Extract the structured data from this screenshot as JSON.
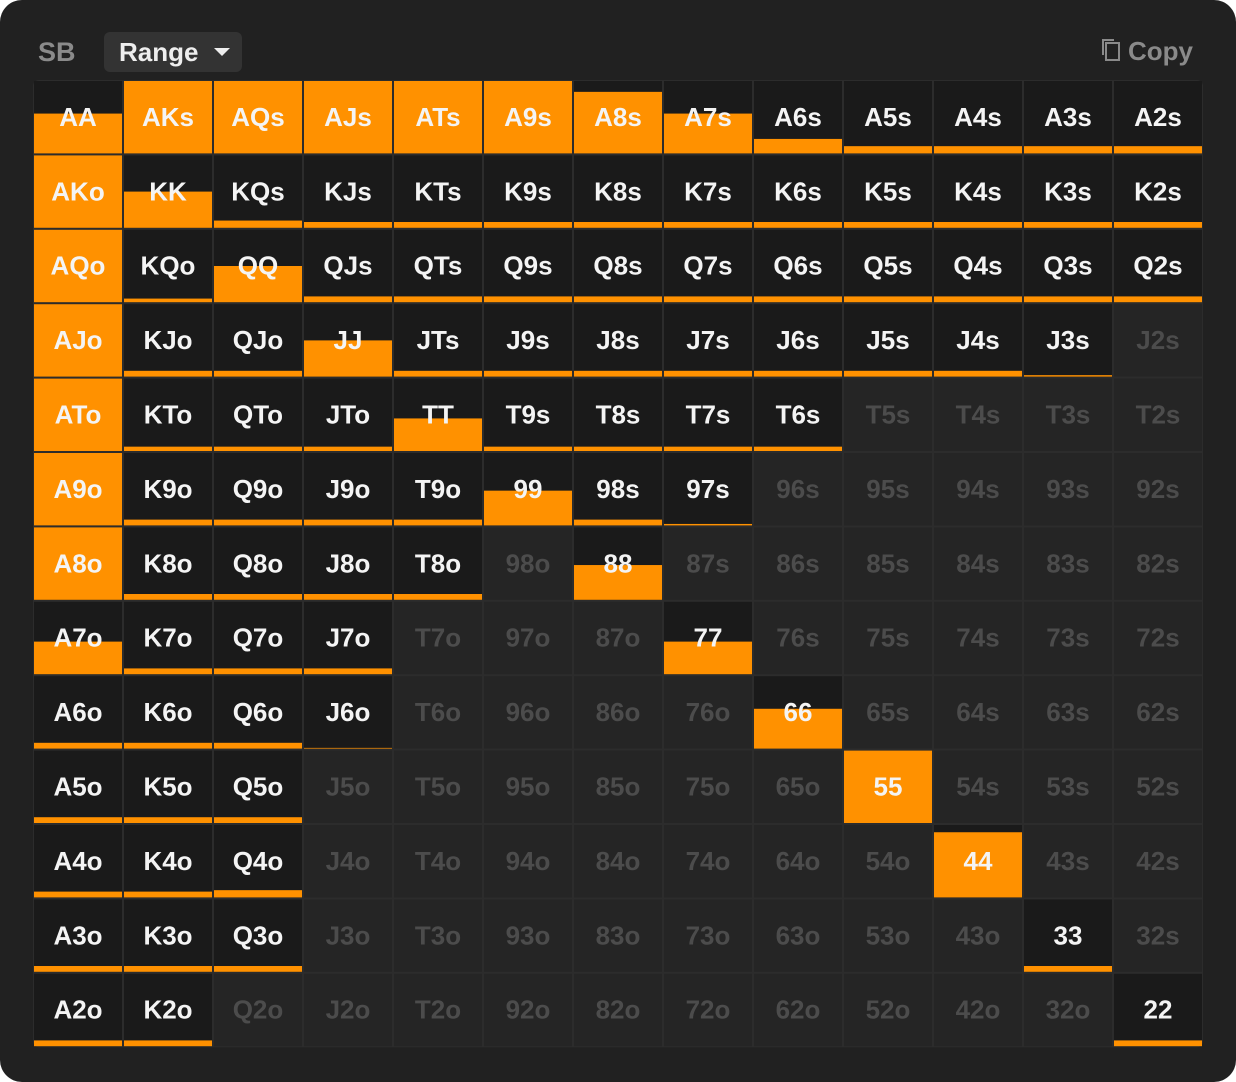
{
  "header": {
    "position": "SB",
    "view": "Range",
    "copy": "Copy"
  },
  "grid": {
    "labels": [
      [
        "AA",
        "AKs",
        "AQs",
        "AJs",
        "ATs",
        "A9s",
        "A8s",
        "A7s",
        "A6s",
        "A5s",
        "A4s",
        "A3s",
        "A2s"
      ],
      [
        "AKo",
        "KK",
        "KQs",
        "KJs",
        "KTs",
        "K9s",
        "K8s",
        "K7s",
        "K6s",
        "K5s",
        "K4s",
        "K3s",
        "K2s"
      ],
      [
        "AQo",
        "KQo",
        "QQ",
        "QJs",
        "QTs",
        "Q9s",
        "Q8s",
        "Q7s",
        "Q6s",
        "Q5s",
        "Q4s",
        "Q3s",
        "Q2s"
      ],
      [
        "AJo",
        "KJo",
        "QJo",
        "JJ",
        "JTs",
        "J9s",
        "J8s",
        "J7s",
        "J6s",
        "J5s",
        "J4s",
        "J3s",
        "J2s"
      ],
      [
        "ATo",
        "KTo",
        "QTo",
        "JTo",
        "TT",
        "T9s",
        "T8s",
        "T7s",
        "T6s",
        "T5s",
        "T4s",
        "T3s",
        "T2s"
      ],
      [
        "A9o",
        "K9o",
        "Q9o",
        "J9o",
        "T9o",
        "99",
        "98s",
        "97s",
        "96s",
        "95s",
        "94s",
        "93s",
        "92s"
      ],
      [
        "A8o",
        "K8o",
        "Q8o",
        "J8o",
        "T8o",
        "98o",
        "88",
        "87s",
        "86s",
        "85s",
        "84s",
        "83s",
        "82s"
      ],
      [
        "A7o",
        "K7o",
        "Q7o",
        "J7o",
        "T7o",
        "97o",
        "87o",
        "77",
        "76s",
        "75s",
        "74s",
        "73s",
        "72s"
      ],
      [
        "A6o",
        "K6o",
        "Q6o",
        "J6o",
        "T6o",
        "96o",
        "86o",
        "76o",
        "66",
        "65s",
        "64s",
        "63s",
        "62s"
      ],
      [
        "A5o",
        "K5o",
        "Q5o",
        "J5o",
        "T5o",
        "95o",
        "85o",
        "75o",
        "65o",
        "55",
        "54s",
        "53s",
        "52s"
      ],
      [
        "A4o",
        "K4o",
        "Q4o",
        "J4o",
        "T4o",
        "94o",
        "84o",
        "74o",
        "64o",
        "54o",
        "44",
        "43s",
        "42s"
      ],
      [
        "A3o",
        "K3o",
        "Q3o",
        "J3o",
        "T3o",
        "93o",
        "83o",
        "73o",
        "63o",
        "53o",
        "43o",
        "33",
        "32s"
      ],
      [
        "A2o",
        "K2o",
        "Q2o",
        "J2o",
        "T2o",
        "92o",
        "82o",
        "72o",
        "62o",
        "52o",
        "42o",
        "32o",
        "22"
      ]
    ],
    "frequency": [
      [
        55,
        100,
        100,
        100,
        100,
        100,
        85,
        55,
        20,
        10,
        10,
        10,
        10
      ],
      [
        100,
        50,
        10,
        8,
        8,
        8,
        8,
        8,
        8,
        8,
        8,
        8,
        8
      ],
      [
        100,
        5,
        50,
        8,
        8,
        8,
        8,
        8,
        8,
        8,
        8,
        8,
        8
      ],
      [
        100,
        8,
        8,
        50,
        8,
        8,
        8,
        8,
        8,
        8,
        8,
        2,
        0
      ],
      [
        100,
        6,
        6,
        6,
        45,
        6,
        6,
        6,
        6,
        0,
        0,
        0,
        0
      ],
      [
        100,
        8,
        8,
        8,
        8,
        48,
        8,
        2,
        0,
        0,
        0,
        0,
        0
      ],
      [
        100,
        8,
        8,
        8,
        8,
        0,
        48,
        0,
        0,
        0,
        0,
        0,
        0
      ],
      [
        45,
        8,
        8,
        8,
        0,
        0,
        0,
        45,
        0,
        0,
        0,
        0,
        0
      ],
      [
        8,
        8,
        8,
        1,
        0,
        0,
        0,
        0,
        55,
        0,
        0,
        0,
        0
      ],
      [
        8,
        8,
        8,
        0,
        0,
        0,
        0,
        0,
        0,
        100,
        0,
        0,
        0
      ],
      [
        8,
        8,
        10,
        0,
        0,
        0,
        0,
        0,
        0,
        0,
        90,
        0,
        0
      ],
      [
        8,
        8,
        8,
        0,
        0,
        0,
        0,
        0,
        0,
        0,
        0,
        8,
        0
      ],
      [
        8,
        8,
        0,
        0,
        0,
        0,
        0,
        0,
        0,
        0,
        0,
        0,
        8
      ]
    ]
  }
}
